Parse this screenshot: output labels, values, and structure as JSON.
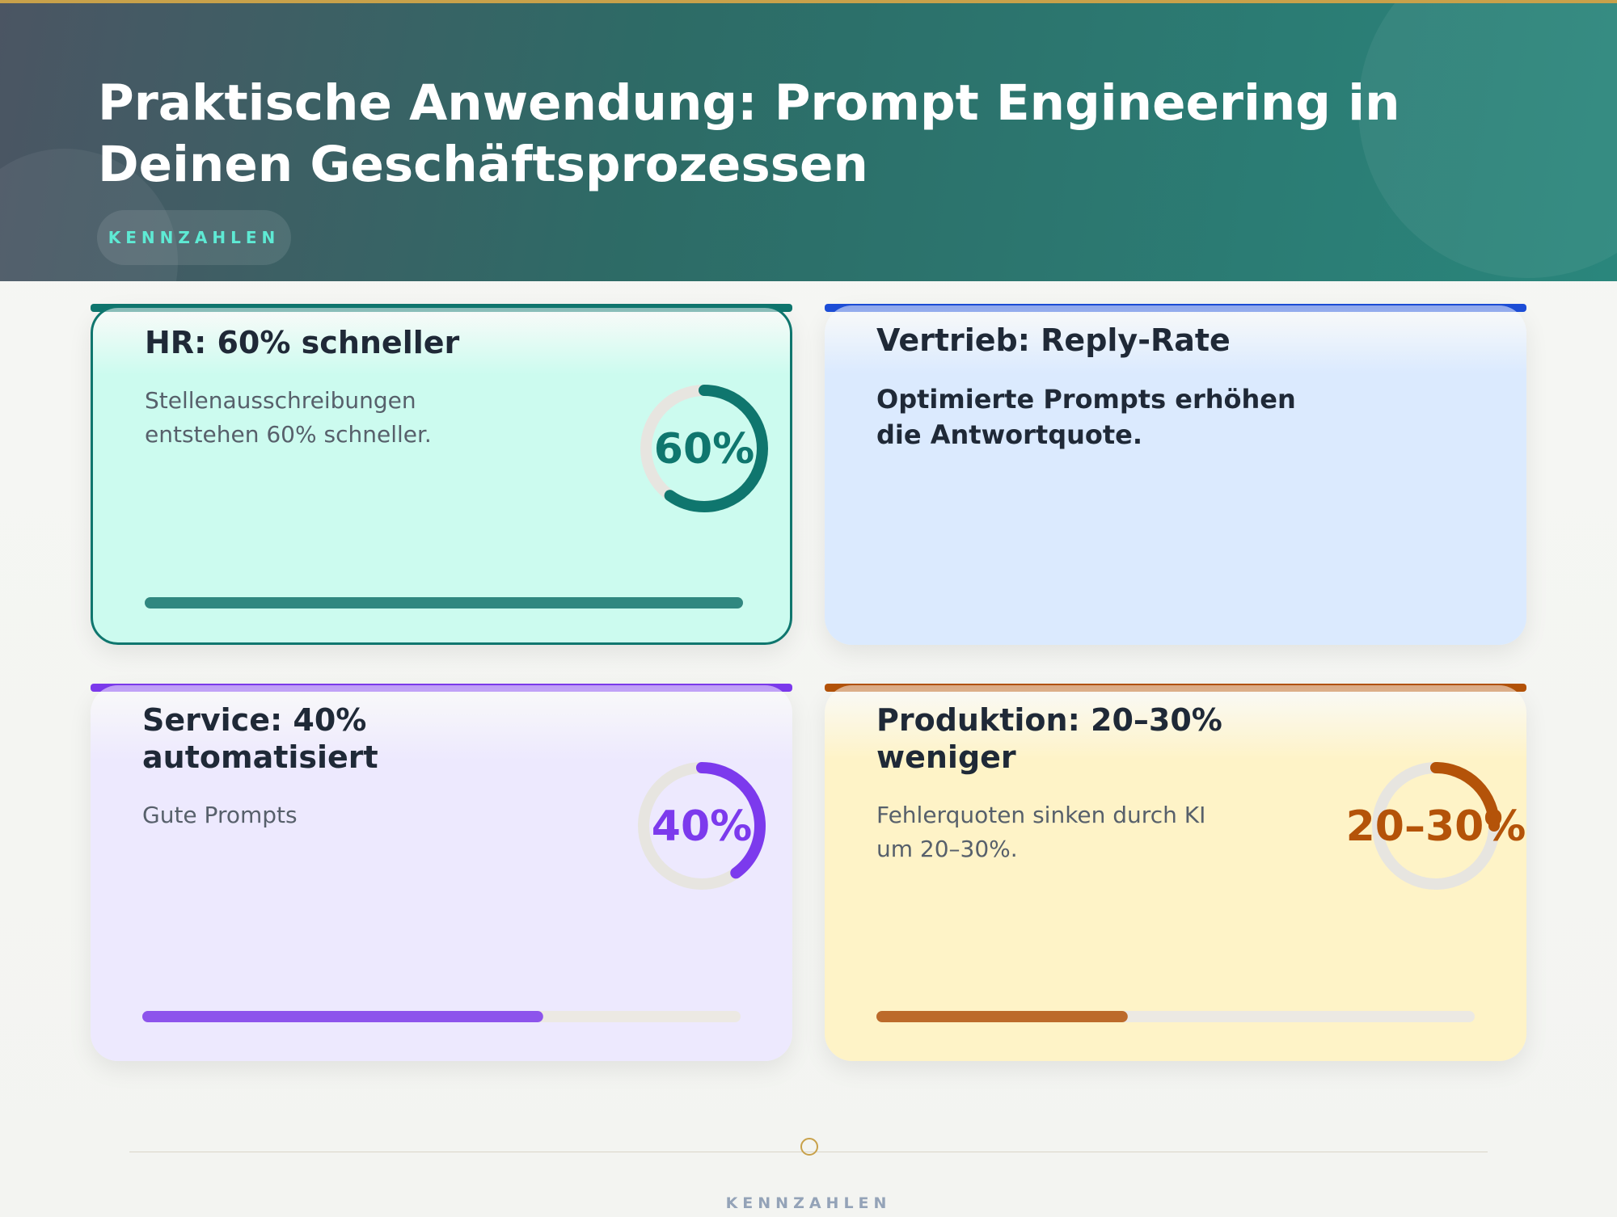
{
  "header": {
    "title": "Praktische Anwendung: Prompt Engineering in Deinen Geschäftsprozessen",
    "badge": "KENNZAHLEN"
  },
  "cards": [
    {
      "title": "HR: 60% schneller",
      "text": "Stellenausschreibungen entstehen 60% schneller.",
      "ring_value": 60,
      "ring_label": "60%",
      "progress": 100,
      "color": "#0f766e",
      "background": "#ccfbef"
    },
    {
      "title": "Vertrieb: Reply-Rate",
      "text": "Optimierte Prompts erhöhen die Antwortquote.",
      "color": "#1d4ed8",
      "background": "#dbeafe"
    },
    {
      "title": "Service: 40% automatisiert",
      "text": "Gute Prompts",
      "ring_value": 40,
      "ring_label": "40%",
      "progress": 67,
      "color": "#7c3aed",
      "background": "#ede9fe"
    },
    {
      "title": "Produktion: 20–30% weniger",
      "text": "Fehlerquoten sinken durch KI um 20–30%.",
      "ring_value": 25,
      "ring_label": "20–30%",
      "progress": 42,
      "color": "#b45309",
      "background": "#fef3c7"
    }
  ],
  "footer": {
    "label": "KENNZAHLEN"
  }
}
